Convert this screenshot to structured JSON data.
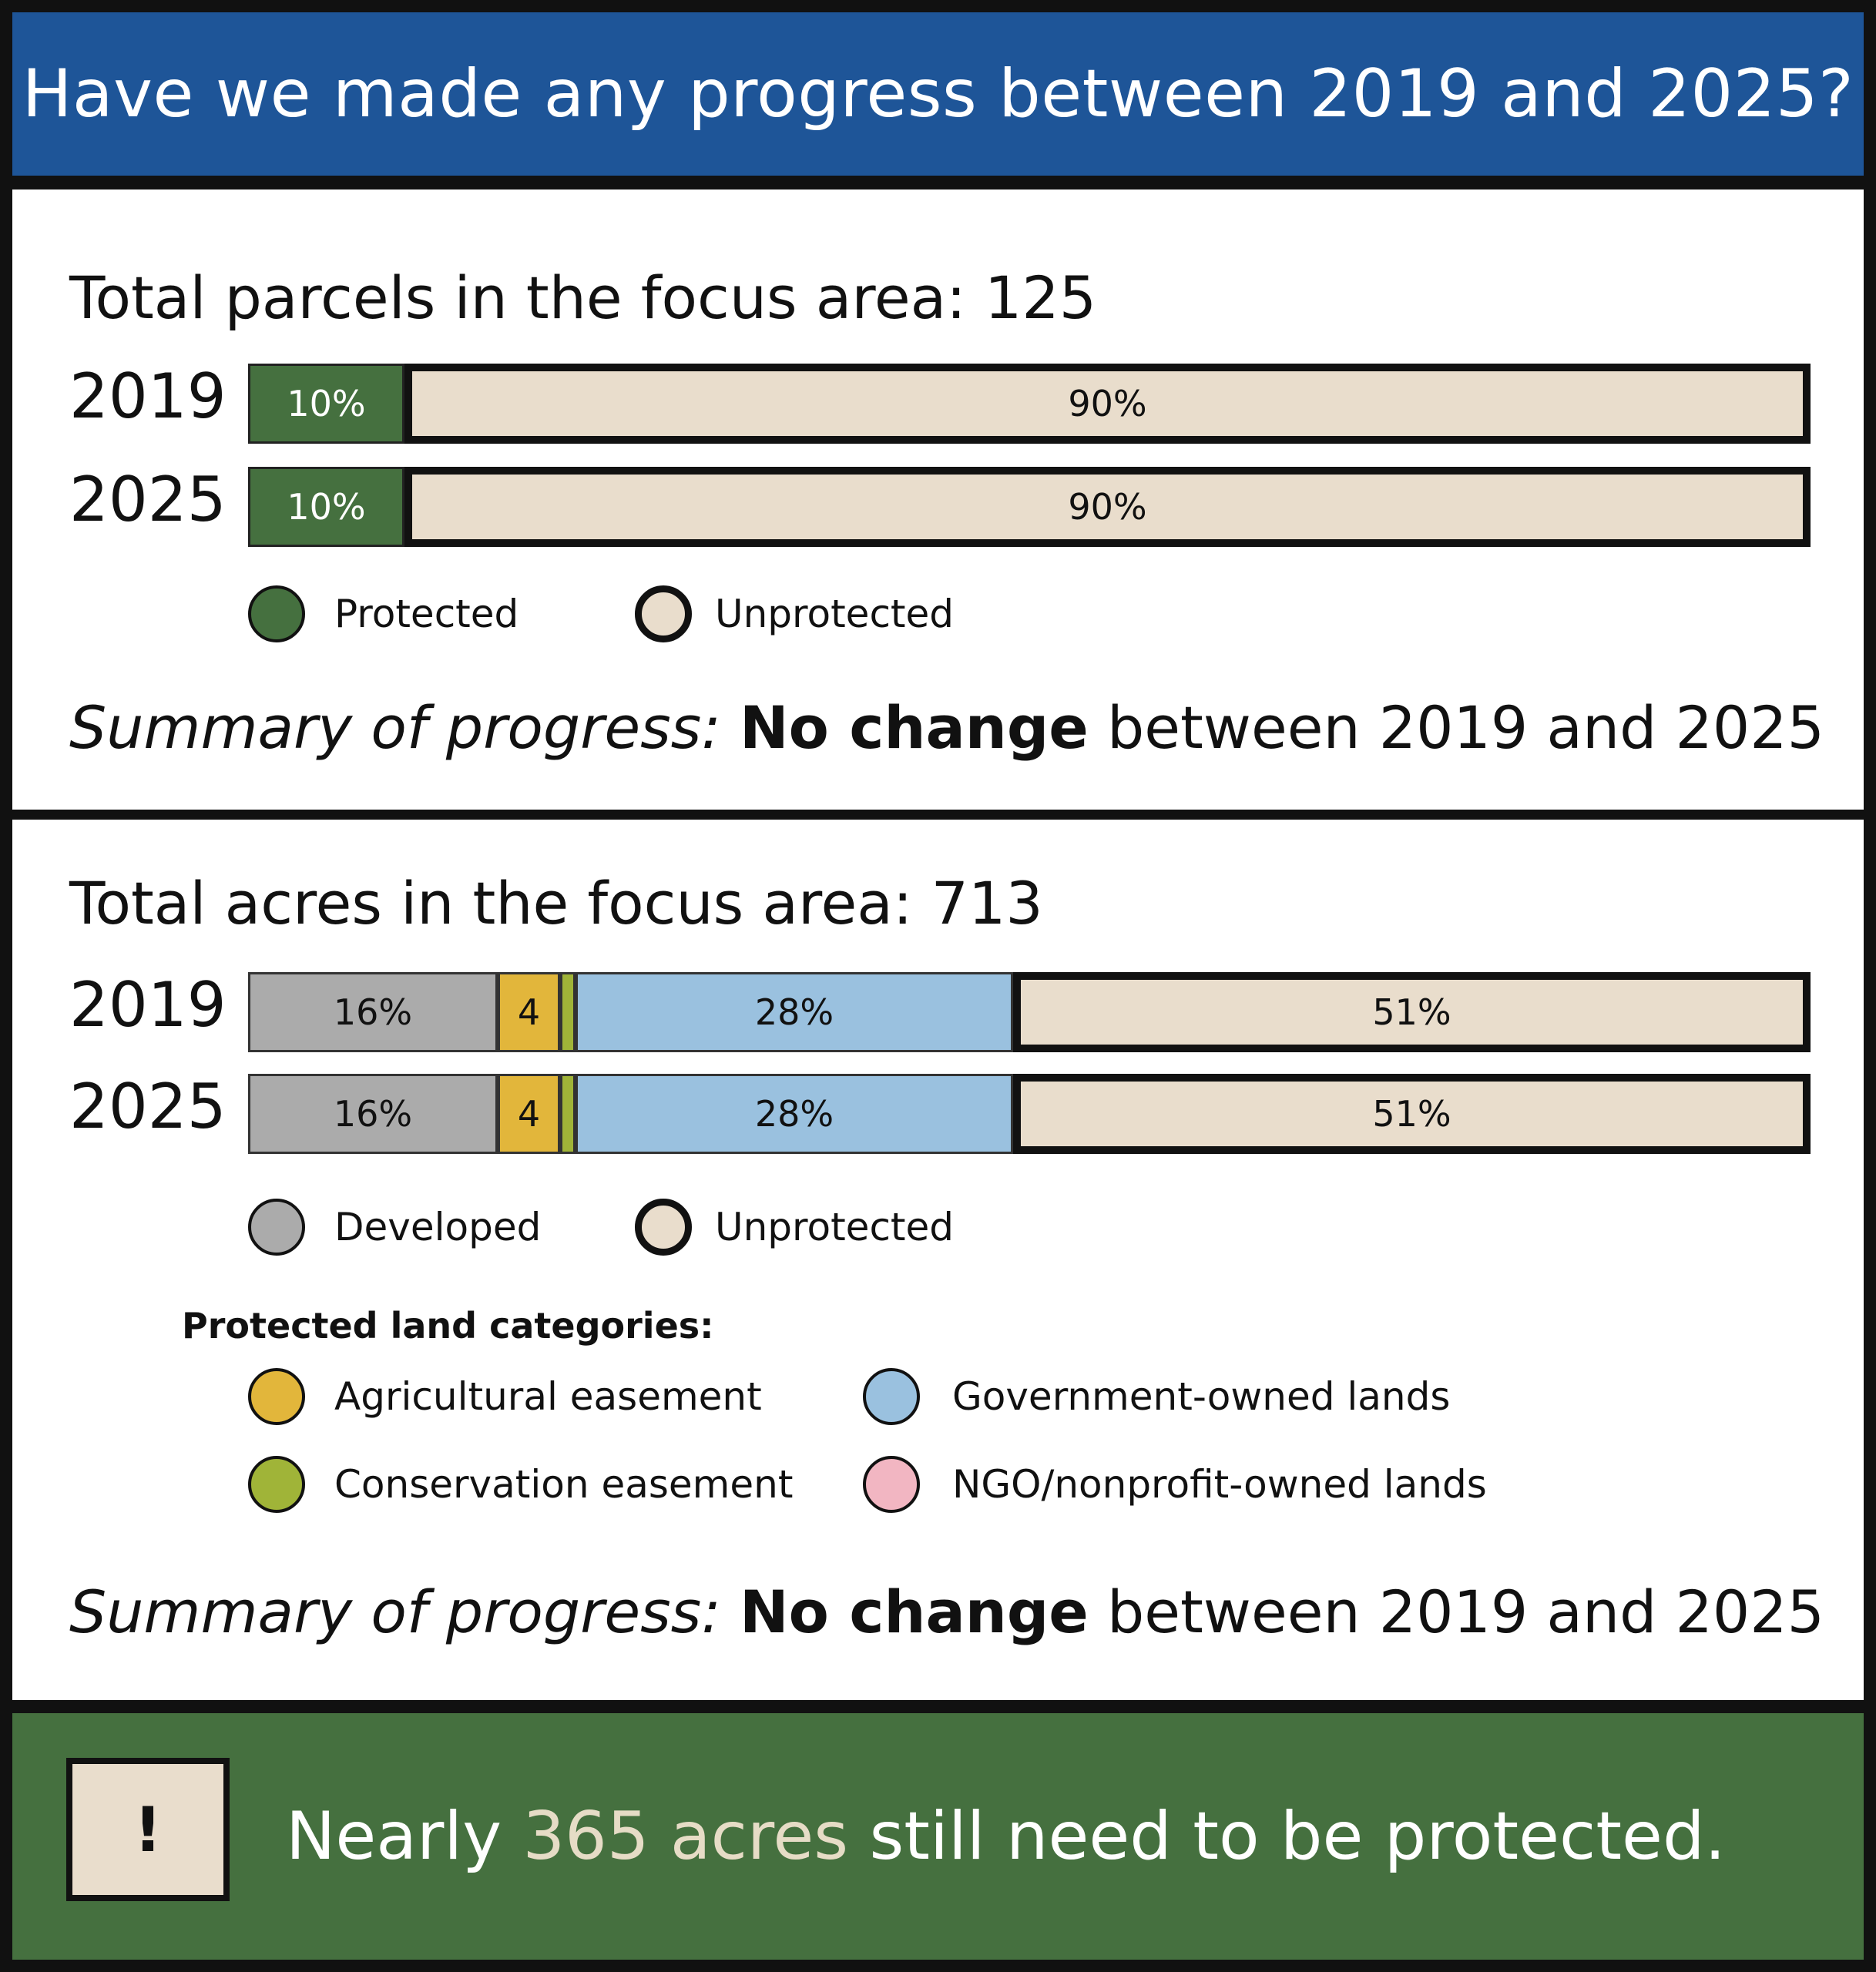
{
  "title": "Have we made any progress between 2019 and 2025?",
  "parcels": {
    "heading": "Total parcels in the focus area: 125",
    "legend": {
      "protected": "Protected",
      "unprotected": "Unprotected"
    },
    "summary": {
      "label": "Summary of progress:",
      "strong": "No change",
      "rest": "between 2019 and 2025"
    }
  },
  "acres": {
    "heading": "Total acres in the focus area: 713",
    "legend": {
      "developed": "Developed",
      "unprotected": "Unprotected"
    },
    "protected_heading": "Protected land categories:",
    "categories": {
      "agricultural": "Agricultural easement",
      "government": "Government-owned lands",
      "conservation": "Conservation easement",
      "ngo": "NGO/nonprofit-owned lands"
    },
    "summary": {
      "label": "Summary of progress:",
      "strong": "No change",
      "rest": "between 2019 and 2025"
    }
  },
  "alert": {
    "icon": "!",
    "prefix": "Nearly",
    "highlight": "365 acres",
    "suffix": "still need to be protected."
  },
  "colors": {
    "banner": "#1e5598",
    "protected": "#45703f",
    "unprotected": "#e9ddcc",
    "developed": "#ababab",
    "agricultural": "#e2b63b",
    "conservation": "#a0b438",
    "government": "#9ac1df",
    "ngo": "#f2b6c2",
    "footer": "#45703f"
  },
  "chart_data": [
    {
      "type": "bar",
      "orientation": "horizontal-stacked",
      "title": "Total parcels in the focus area: 125",
      "categories": [
        "2019",
        "2025"
      ],
      "series": [
        {
          "name": "Protected",
          "values": [
            10,
            10
          ],
          "labels": [
            "10%",
            "10%"
          ]
        },
        {
          "name": "Unprotected",
          "values": [
            90,
            90
          ],
          "labels": [
            "90%",
            "90%"
          ]
        }
      ]
    },
    {
      "type": "bar",
      "orientation": "horizontal-stacked",
      "title": "Total acres in the focus area: 713",
      "categories": [
        "2019",
        "2025"
      ],
      "series": [
        {
          "name": "Developed",
          "values": [
            16,
            16
          ],
          "labels": [
            "16%",
            "16%"
          ]
        },
        {
          "name": "Agricultural easement",
          "values": [
            4,
            4
          ],
          "labels": [
            "4",
            "4"
          ]
        },
        {
          "name": "Conservation easement",
          "values": [
            1,
            1
          ],
          "labels": [
            "",
            ""
          ]
        },
        {
          "name": "Government-owned lands",
          "values": [
            28,
            28
          ],
          "labels": [
            "28%",
            "28%"
          ]
        },
        {
          "name": "Unprotected",
          "values": [
            51,
            51
          ],
          "labels": [
            "51%",
            "51%"
          ]
        }
      ]
    }
  ]
}
